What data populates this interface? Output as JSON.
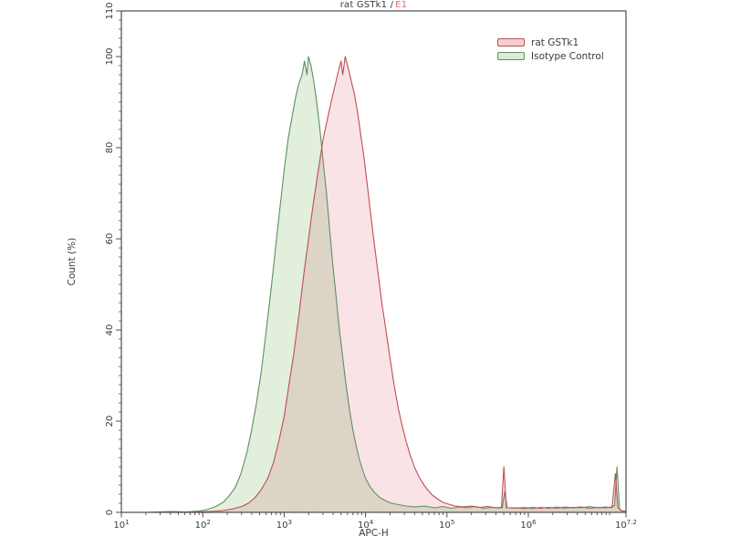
{
  "title": {
    "main": "rat GSTk1 /",
    "highlight": "E1"
  },
  "axes": {
    "x_label": "APC-H",
    "y_label": "Count  (%)"
  },
  "legend": [
    {
      "label": "rat GSTk1",
      "fill": "#f6ccd3",
      "border": "#bf4f52"
    },
    {
      "label": "Isotype Control",
      "fill": "#d9edd2",
      "border": "#5f8f63"
    }
  ],
  "layout_colors": {
    "axis": "#4d4d4d",
    "tick_text": "#3a3a3a",
    "title_text": "#3a3a3a",
    "title_highlight": "#dd6a6a"
  },
  "chart_data": {
    "type": "area",
    "subtype": "flow-cytometry-histogram-overlay",
    "title": "rat GSTk1 / E1",
    "xlabel": "APC-H",
    "ylabel": "Count  (%)",
    "x_scale": "log10",
    "x_range_log": [
      1,
      7.2
    ],
    "ylim": [
      0,
      110
    ],
    "y_major_ticks": [
      0,
      20,
      40,
      60,
      80,
      100,
      110
    ],
    "y_minor_step": 2,
    "x_major_ticks": [
      {
        "log": 1,
        "base": "10",
        "exp": "1"
      },
      {
        "log": 2,
        "base": "10",
        "exp": "2"
      },
      {
        "log": 3,
        "base": "10",
        "exp": "3"
      },
      {
        "log": 4,
        "base": "10",
        "exp": "4"
      },
      {
        "log": 5,
        "base": "10",
        "exp": "5"
      },
      {
        "log": 6,
        "base": "10",
        "exp": "6"
      },
      {
        "log": 7.2,
        "base": "10",
        "exp": "7.2"
      }
    ],
    "legend_position": "top-right-inside",
    "grid": false,
    "series": [
      {
        "name": "rat GSTk1",
        "stroke": "#bf4f52",
        "fill": "#f2b6c0",
        "fill_opacity": 0.38,
        "peak_x_log": 3.75,
        "peak_value": 100,
        "points": [
          [
            1.0,
            0
          ],
          [
            1.6,
            0
          ],
          [
            1.9,
            0.1
          ],
          [
            2.1,
            0.2
          ],
          [
            2.25,
            0.4
          ],
          [
            2.38,
            0.8
          ],
          [
            2.48,
            1.3
          ],
          [
            2.56,
            2
          ],
          [
            2.64,
            3.2
          ],
          [
            2.72,
            5
          ],
          [
            2.8,
            7.5
          ],
          [
            2.87,
            11
          ],
          [
            2.94,
            16
          ],
          [
            3.0,
            21
          ],
          [
            3.06,
            28
          ],
          [
            3.12,
            35
          ],
          [
            3.18,
            43
          ],
          [
            3.24,
            52
          ],
          [
            3.3,
            60
          ],
          [
            3.36,
            68
          ],
          [
            3.42,
            75
          ],
          [
            3.48,
            82
          ],
          [
            3.54,
            87
          ],
          [
            3.59,
            91
          ],
          [
            3.63,
            94
          ],
          [
            3.67,
            97
          ],
          [
            3.7,
            99
          ],
          [
            3.72,
            96
          ],
          [
            3.75,
            100
          ],
          [
            3.78,
            98
          ],
          [
            3.82,
            95
          ],
          [
            3.86,
            92
          ],
          [
            3.9,
            88
          ],
          [
            3.94,
            83
          ],
          [
            3.98,
            78
          ],
          [
            4.02,
            72
          ],
          [
            4.06,
            66
          ],
          [
            4.1,
            60
          ],
          [
            4.15,
            53
          ],
          [
            4.2,
            46
          ],
          [
            4.25,
            40
          ],
          [
            4.3,
            34
          ],
          [
            4.35,
            28
          ],
          [
            4.4,
            23
          ],
          [
            4.45,
            19
          ],
          [
            4.5,
            15.5
          ],
          [
            4.55,
            12.5
          ],
          [
            4.6,
            10
          ],
          [
            4.65,
            8
          ],
          [
            4.7,
            6.5
          ],
          [
            4.76,
            5
          ],
          [
            4.82,
            3.8
          ],
          [
            4.88,
            3
          ],
          [
            4.95,
            2.2
          ],
          [
            5.02,
            1.8
          ],
          [
            5.1,
            1.4
          ],
          [
            5.2,
            1.2
          ],
          [
            5.3,
            1.4
          ],
          [
            5.4,
            1.1
          ],
          [
            5.5,
            1.3
          ],
          [
            5.6,
            1
          ],
          [
            5.67,
            1.1
          ],
          [
            5.7,
            10
          ],
          [
            5.73,
            1
          ],
          [
            5.85,
            1
          ],
          [
            5.95,
            0.8
          ],
          [
            6.05,
            1.1
          ],
          [
            6.15,
            0.9
          ],
          [
            6.25,
            1.1
          ],
          [
            6.35,
            0.9
          ],
          [
            6.45,
            1.2
          ],
          [
            6.55,
            1
          ],
          [
            6.65,
            1.2
          ],
          [
            6.75,
            0.9
          ],
          [
            6.85,
            1.1
          ],
          [
            6.95,
            1
          ],
          [
            7.03,
            1.2
          ],
          [
            7.07,
            8.5
          ],
          [
            7.1,
            1
          ],
          [
            7.14,
            0.4
          ],
          [
            7.2,
            0.2
          ]
        ]
      },
      {
        "name": "Isotype Control",
        "stroke": "#5f8f63",
        "fill": "#b4d6a8",
        "fill_opacity": 0.4,
        "peak_x_log": 3.3,
        "peak_value": 100,
        "points": [
          [
            1.0,
            0
          ],
          [
            1.3,
            0
          ],
          [
            1.6,
            0.2
          ],
          [
            1.8,
            0.1
          ],
          [
            1.95,
            0.3
          ],
          [
            2.05,
            0.6
          ],
          [
            2.15,
            1.2
          ],
          [
            2.25,
            2.2
          ],
          [
            2.32,
            3.5
          ],
          [
            2.4,
            5.5
          ],
          [
            2.47,
            8.5
          ],
          [
            2.54,
            13
          ],
          [
            2.6,
            18
          ],
          [
            2.66,
            24
          ],
          [
            2.72,
            31
          ],
          [
            2.78,
            40
          ],
          [
            2.84,
            49
          ],
          [
            2.9,
            59
          ],
          [
            2.95,
            67
          ],
          [
            3.0,
            75
          ],
          [
            3.05,
            82
          ],
          [
            3.1,
            87
          ],
          [
            3.14,
            91
          ],
          [
            3.18,
            94
          ],
          [
            3.22,
            96
          ],
          [
            3.25,
            99
          ],
          [
            3.28,
            96
          ],
          [
            3.3,
            100
          ],
          [
            3.33,
            98
          ],
          [
            3.36,
            95
          ],
          [
            3.4,
            90
          ],
          [
            3.44,
            84
          ],
          [
            3.48,
            77
          ],
          [
            3.52,
            70
          ],
          [
            3.56,
            62
          ],
          [
            3.6,
            54
          ],
          [
            3.64,
            47
          ],
          [
            3.68,
            40
          ],
          [
            3.72,
            34
          ],
          [
            3.76,
            28
          ],
          [
            3.8,
            23
          ],
          [
            3.84,
            18.5
          ],
          [
            3.88,
            15
          ],
          [
            3.92,
            12
          ],
          [
            3.96,
            9.5
          ],
          [
            4.0,
            7.5
          ],
          [
            4.06,
            5.5
          ],
          [
            4.12,
            4.2
          ],
          [
            4.18,
            3.2
          ],
          [
            4.25,
            2.5
          ],
          [
            4.32,
            2
          ],
          [
            4.4,
            1.7
          ],
          [
            4.5,
            1.4
          ],
          [
            4.6,
            1.2
          ],
          [
            4.72,
            1.4
          ],
          [
            4.85,
            1
          ],
          [
            4.95,
            1.3
          ],
          [
            5.05,
            0.9
          ],
          [
            5.15,
            1.2
          ],
          [
            5.25,
            1
          ],
          [
            5.35,
            1.3
          ],
          [
            5.45,
            0.9
          ],
          [
            5.55,
            1.1
          ],
          [
            5.65,
            1
          ],
          [
            5.68,
            1
          ],
          [
            5.71,
            4.5
          ],
          [
            5.74,
            1
          ],
          [
            5.85,
            0.9
          ],
          [
            5.95,
            1.1
          ],
          [
            6.05,
            0.8
          ],
          [
            6.15,
            1.1
          ],
          [
            6.25,
            0.9
          ],
          [
            6.35,
            1.2
          ],
          [
            6.45,
            0.9
          ],
          [
            6.55,
            1.1
          ],
          [
            6.65,
            1
          ],
          [
            6.75,
            1.3
          ],
          [
            6.85,
            1
          ],
          [
            6.95,
            1.2
          ],
          [
            7.02,
            1
          ],
          [
            7.06,
            1.5
          ],
          [
            7.09,
            10
          ],
          [
            7.12,
            0.8
          ],
          [
            7.15,
            0.3
          ],
          [
            7.2,
            0.2
          ]
        ]
      }
    ]
  }
}
